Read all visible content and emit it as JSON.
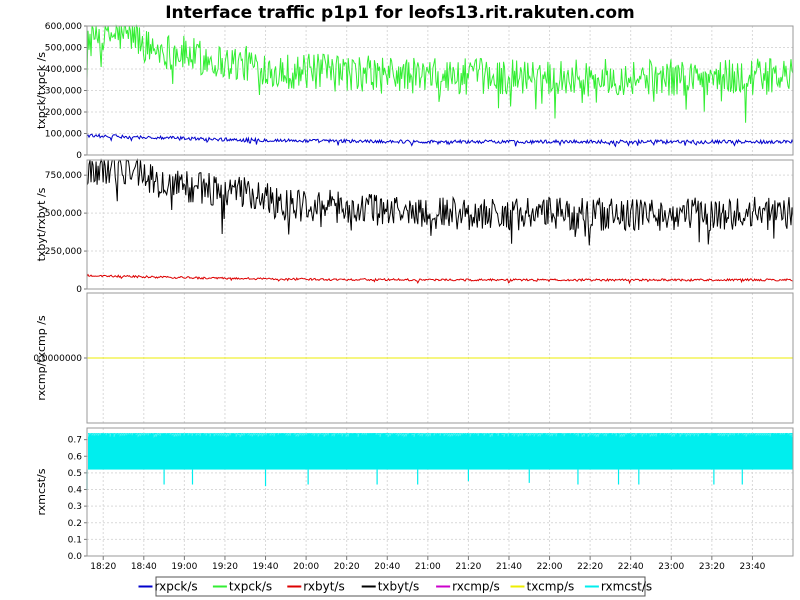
{
  "chart_data": {
    "type": "line",
    "title": "Interface traffic p1p1 for leofs13.rit.rakuten.com",
    "time_range": [
      "18:12",
      "24:00"
    ],
    "x_ticks": [
      "18:20",
      "18:40",
      "19:00",
      "19:20",
      "19:40",
      "20:00",
      "20:20",
      "20:40",
      "21:00",
      "21:20",
      "21:40",
      "22:00",
      "22:20",
      "22:40",
      "23:00",
      "23:20",
      "23:40"
    ],
    "legend": [
      {
        "name": "rxpck/s",
        "color": "#0000cc"
      },
      {
        "name": "txpck/s",
        "color": "#33ee33"
      },
      {
        "name": "rxbyt/s",
        "color": "#dd0000"
      },
      {
        "name": "txbyt/s",
        "color": "#000000"
      },
      {
        "name": "rxcmp/s",
        "color": "#cc00cc"
      },
      {
        "name": "txcmp/s",
        "color": "#eeee00"
      },
      {
        "name": "rxmcst/s",
        "color": "#00eeee"
      }
    ],
    "panels": [
      {
        "ylabel": "txpck/txpck /s",
        "ylim": [
          0,
          600000
        ],
        "y_ticks": [
          {
            "v": 0,
            "label": "0"
          },
          {
            "v": 100000,
            "label": "100,000"
          },
          {
            "v": 200000,
            "label": "200,000"
          },
          {
            "v": 300000,
            "label": "300,000"
          },
          {
            "v": 400000,
            "label": "400,000"
          },
          {
            "v": 500000,
            "label": "500,000"
          },
          {
            "v": 600000,
            "label": "600,000"
          }
        ],
        "series": [
          {
            "name": "txpck/s",
            "color": "#33ee33",
            "trend": [
              [
                "18:12",
                555000
              ],
              [
                "18:35",
                560000
              ],
              [
                "18:42",
                500000
              ],
              [
                "19:00",
                470000
              ],
              [
                "19:20",
                430000
              ],
              [
                "19:35",
                420000
              ],
              [
                "19:50",
                390000
              ],
              [
                "20:30",
                380000
              ],
              [
                "21:00",
                365000
              ],
              [
                "22:00",
                365000
              ],
              [
                "23:00",
                360000
              ],
              [
                "24:00",
                365000
              ]
            ],
            "noise": 85000
          },
          {
            "name": "rxpck/s",
            "color": "#0000cc",
            "trend": [
              [
                "18:12",
                90000
              ],
              [
                "18:40",
                82000
              ],
              [
                "19:20",
                72000
              ],
              [
                "20:00",
                66000
              ],
              [
                "21:00",
                62000
              ],
              [
                "22:00",
                62000
              ],
              [
                "23:00",
                62000
              ],
              [
                "24:00",
                62000
              ]
            ],
            "noise": 8000
          }
        ]
      },
      {
        "ylabel": "txbyt/rxbyt /s",
        "ylim": [
          0,
          850000
        ],
        "y_ticks": [
          {
            "v": 0,
            "label": "0"
          },
          {
            "v": 250000,
            "label": "250,000"
          },
          {
            "v": 500000,
            "label": "500,000"
          },
          {
            "v": 750000,
            "label": "750,000"
          }
        ],
        "series": [
          {
            "name": "txbyt/s",
            "color": "#000000",
            "trend": [
              [
                "18:12",
                790000
              ],
              [
                "18:38",
                790000
              ],
              [
                "18:45",
                700000
              ],
              [
                "19:00",
                680000
              ],
              [
                "19:20",
                640000
              ],
              [
                "19:35",
                620000
              ],
              [
                "19:50",
                560000
              ],
              [
                "20:30",
                530000
              ],
              [
                "21:00",
                500000
              ],
              [
                "22:00",
                495000
              ],
              [
                "23:00",
                490000
              ],
              [
                "24:00",
                500000
              ]
            ],
            "noise": 110000
          },
          {
            "name": "rxbyt/s",
            "color": "#dd0000",
            "trend": [
              [
                "18:12",
                88000
              ],
              [
                "18:40",
                80000
              ],
              [
                "19:20",
                70000
              ],
              [
                "20:00",
                64000
              ],
              [
                "21:00",
                60000
              ],
              [
                "22:00",
                60000
              ],
              [
                "23:00",
                60000
              ],
              [
                "24:00",
                60000
              ]
            ],
            "noise": 7000
          }
        ]
      },
      {
        "ylabel": "rxcmp/txcmp /s",
        "ylim": [
          -1,
          1
        ],
        "y_ticks": [
          {
            "v": 0,
            "label": "0.0000000"
          }
        ],
        "series": [
          {
            "name": "rxcmp/s",
            "color": "#cc00cc",
            "trend": [
              [
                "18:12",
                0
              ],
              [
                "24:00",
                0
              ]
            ],
            "noise": 0
          },
          {
            "name": "txcmp/s",
            "color": "#eeee00",
            "trend": [
              [
                "18:12",
                0
              ],
              [
                "24:00",
                0
              ]
            ],
            "noise": 0
          }
        ]
      },
      {
        "ylabel": "rxmcst/s",
        "ylim": [
          0,
          0.77
        ],
        "y_ticks": [
          {
            "v": 0,
            "label": "0.0"
          },
          {
            "v": 0.1,
            "label": "0.1"
          },
          {
            "v": 0.2,
            "label": "0.2"
          },
          {
            "v": 0.3,
            "label": "0.3"
          },
          {
            "v": 0.4,
            "label": "0.4"
          },
          {
            "v": 0.5,
            "label": "0.5"
          },
          {
            "v": 0.6,
            "label": "0.6"
          },
          {
            "v": 0.7,
            "label": "0.7"
          }
        ],
        "series": [
          {
            "name": "rxmcst/s",
            "color": "#00eeee",
            "band": [
              0.52,
              0.74
            ],
            "dips": [
              [
                "18:12",
                0.4
              ],
              [
                "18:50",
                0.43
              ],
              [
                "19:04",
                0.43
              ],
              [
                "19:40",
                0.42
              ],
              [
                "20:01",
                0.43
              ],
              [
                "20:35",
                0.43
              ],
              [
                "20:55",
                0.43
              ],
              [
                "21:20",
                0.45
              ],
              [
                "21:50",
                0.44
              ],
              [
                "22:14",
                0.43
              ],
              [
                "22:34",
                0.43
              ],
              [
                "22:44",
                0.43
              ],
              [
                "23:21",
                0.43
              ],
              [
                "23:35",
                0.43
              ]
            ]
          }
        ]
      }
    ]
  }
}
